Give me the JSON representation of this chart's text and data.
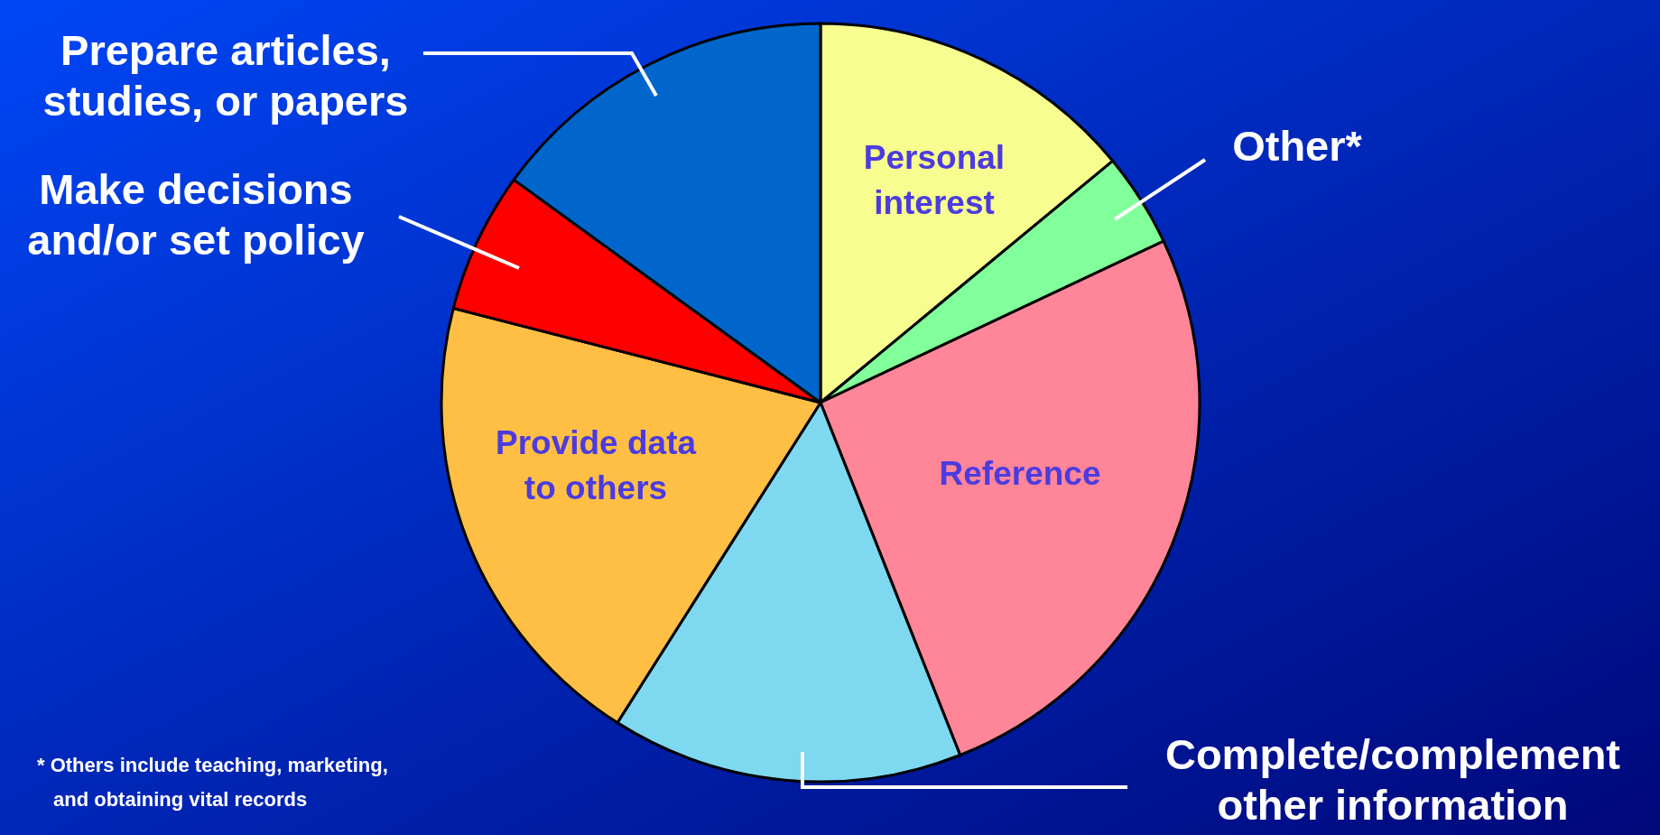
{
  "chart_data": {
    "type": "pie",
    "categories": [
      "Personal interest",
      "Other*",
      "Reference",
      "Complete/complement other information",
      "Provide data to others",
      "Make decisions and/or set policy",
      "Prepare articles, studies, or papers"
    ],
    "values": [
      14,
      4,
      26,
      15,
      20,
      6,
      15
    ],
    "colors": [
      "#f7fd8e",
      "#80ff9a",
      "#ff8599",
      "#7ed8f0",
      "#ffbf45",
      "#ff0000",
      "#0066cc"
    ],
    "annotations": [
      "* Others include teaching, marketing, and obtaining vital records"
    ]
  }
}
